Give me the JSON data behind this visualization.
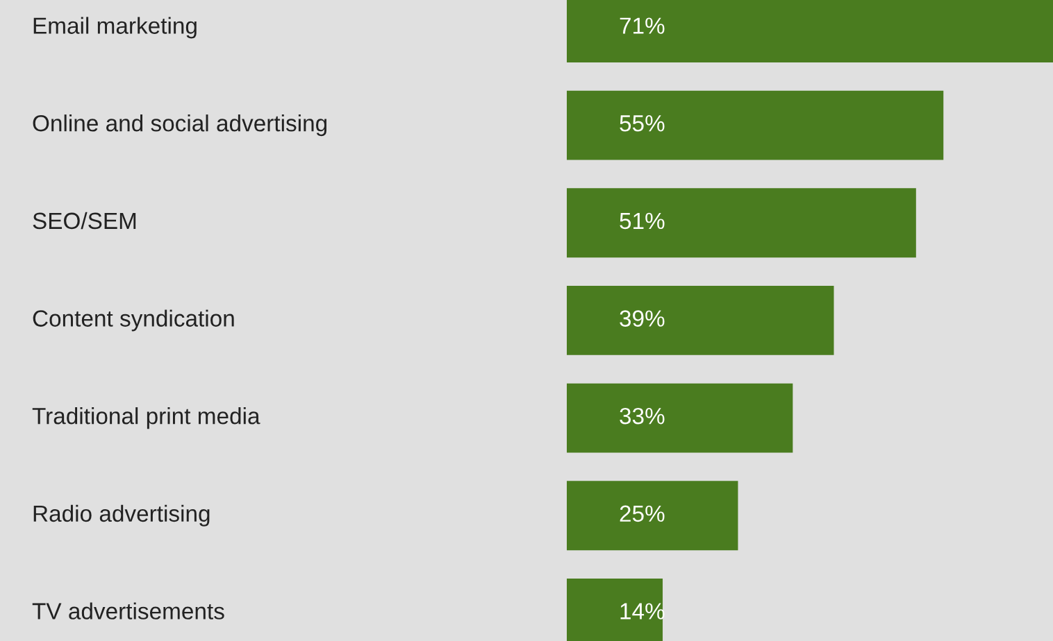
{
  "chart_data": {
    "type": "bar",
    "orientation": "horizontal",
    "categories": [
      "Email marketing",
      "Online and social advertising",
      "SEO/SEM",
      "Content syndication",
      "Traditional print media",
      "Radio advertising",
      "TV advertisements"
    ],
    "values": [
      71,
      55,
      51,
      39,
      33,
      25,
      14
    ],
    "value_labels": [
      "71%",
      "55%",
      "51%",
      "39%",
      "33%",
      "25%",
      "14%"
    ],
    "color": "#4a7c1f",
    "xlim": [
      0,
      71
    ],
    "tick_labels": "y"
  }
}
